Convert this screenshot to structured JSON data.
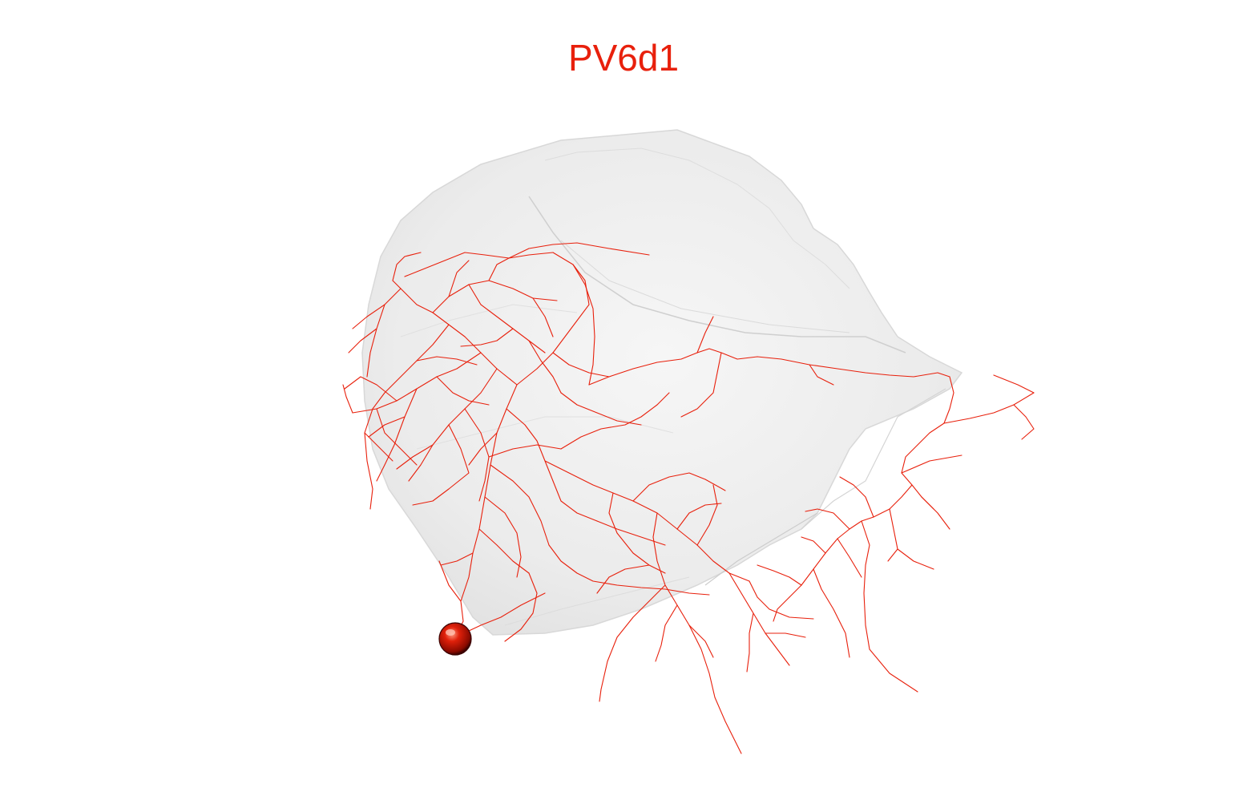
{
  "title": {
    "text": "PV6d1",
    "color": "#e8200c"
  },
  "neuron": {
    "color": "#e8200c",
    "soma_color": "#b01000"
  },
  "neuropil": {
    "fill": "#e6e6e6",
    "edge": "#d0d0d0"
  }
}
